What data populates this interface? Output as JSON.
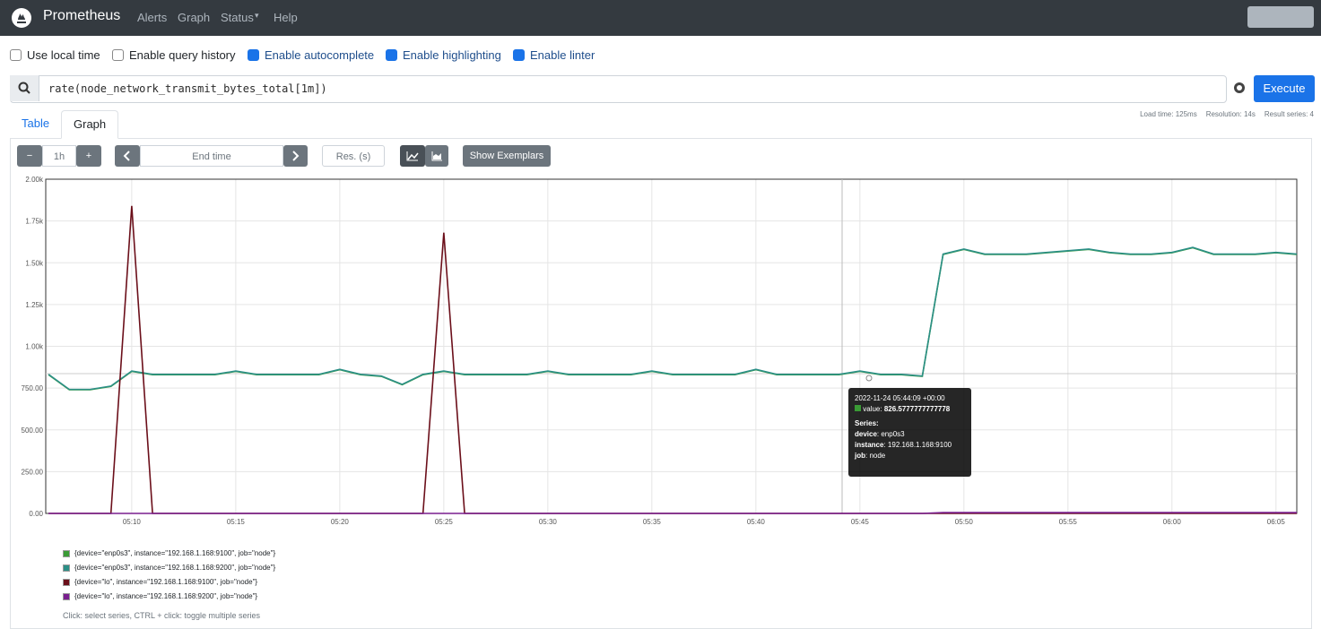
{
  "navbar": {
    "brand": "Prometheus",
    "links": [
      "Alerts",
      "Graph",
      "Status",
      "Help"
    ]
  },
  "options": [
    {
      "label": "Use local time",
      "checked": false
    },
    {
      "label": "Enable query history",
      "checked": false
    },
    {
      "label": "Enable autocomplete",
      "checked": true
    },
    {
      "label": "Enable highlighting",
      "checked": true
    },
    {
      "label": "Enable linter",
      "checked": true
    }
  ],
  "query": "rate(node_network_transmit_bytes_total[1m])",
  "execute": "Execute",
  "tabs": [
    "Table",
    "Graph"
  ],
  "stats": [
    "Load time: 125ms",
    "Resolution: 14s",
    "Result series: 4"
  ],
  "controls": {
    "minus": "−",
    "range": "1h",
    "plus": "+",
    "end_time": "End time",
    "resolution": "Res. (s)",
    "exemplars": "Show Exemplars"
  },
  "chart_data": {
    "type": "line",
    "grid": true,
    "x": [
      "05:06",
      "05:07",
      "05:08",
      "05:09",
      "05:10",
      "05:11",
      "05:12",
      "05:13",
      "05:14",
      "05:15",
      "05:16",
      "05:17",
      "05:18",
      "05:19",
      "05:20",
      "05:21",
      "05:22",
      "05:23",
      "05:24",
      "05:25",
      "05:26",
      "05:27",
      "05:28",
      "05:29",
      "05:30",
      "05:31",
      "05:32",
      "05:33",
      "05:34",
      "05:35",
      "05:36",
      "05:37",
      "05:38",
      "05:39",
      "05:40",
      "05:41",
      "05:42",
      "05:43",
      "05:44",
      "05:45",
      "05:46",
      "05:47",
      "05:48",
      "05:49",
      "05:50",
      "05:51",
      "05:52",
      "05:53",
      "05:54",
      "05:55",
      "05:56",
      "05:57",
      "05:58",
      "05:59",
      "06:00",
      "06:01",
      "06:02",
      "06:03",
      "06:04",
      "06:05",
      "06:06"
    ],
    "xlim": [
      "05:05:52",
      "06:06:00"
    ],
    "xticks": [
      "05:10",
      "05:15",
      "05:20",
      "05:25",
      "05:30",
      "05:35",
      "05:40",
      "05:45",
      "05:50",
      "05:55",
      "06:00",
      "06:05"
    ],
    "ylim": [
      0,
      2000
    ],
    "yticks": [
      {
        "value": 0,
        "label": "0.00"
      },
      {
        "value": 250,
        "label": "250.00"
      },
      {
        "value": 500,
        "label": "500.00"
      },
      {
        "value": 750,
        "label": "750.00"
      },
      {
        "value": 1000,
        "label": "1.00k"
      },
      {
        "value": 1250,
        "label": "1.25k"
      },
      {
        "value": 1500,
        "label": "1.50k"
      },
      {
        "value": 1750,
        "label": "1.75k"
      },
      {
        "value": 2000,
        "label": "2.00k"
      }
    ],
    "series": [
      {
        "name": "{device=\"enp0s3\", instance=\"192.168.1.168:9100\", job=\"node\"}",
        "color": "#3a9b35",
        "values": [
          830,
          740,
          740,
          760,
          850,
          830,
          830,
          830,
          830,
          850,
          830,
          830,
          830,
          830,
          860,
          830,
          820,
          770,
          830,
          850,
          830,
          830,
          830,
          830,
          850,
          830,
          830,
          830,
          830,
          850,
          830,
          830,
          830,
          830,
          860,
          830,
          830,
          830,
          830,
          850,
          830,
          830,
          820,
          1550,
          1580,
          1550,
          1550,
          1550,
          1560,
          1570,
          1580,
          1560,
          1550,
          1550,
          1560,
          1590,
          1550,
          1550,
          1550,
          1560,
          1550
        ]
      },
      {
        "name": "{device=\"enp0s3\", instance=\"192.168.1.168:9200\", job=\"node\"}",
        "color": "#2b8f86",
        "values": [
          832,
          742,
          742,
          762,
          852,
          832,
          832,
          832,
          832,
          852,
          832,
          832,
          832,
          832,
          862,
          832,
          822,
          772,
          832,
          852,
          832,
          832,
          832,
          832,
          852,
          832,
          832,
          832,
          832,
          852,
          832,
          832,
          832,
          832,
          862,
          832,
          832,
          832,
          832,
          852,
          832,
          832,
          822,
          1552,
          1582,
          1552,
          1552,
          1552,
          1562,
          1572,
          1582,
          1562,
          1552,
          1552,
          1562,
          1592,
          1552,
          1552,
          1552,
          1562,
          1552
        ]
      },
      {
        "name": "{device=\"lo\", instance=\"192.168.1.168:9100\", job=\"node\"}",
        "color": "#6b0f1a",
        "values": [
          0,
          0,
          0,
          0,
          1840,
          0,
          0,
          0,
          0,
          0,
          0,
          0,
          0,
          0,
          0,
          0,
          0,
          0,
          0,
          1680,
          0,
          0,
          0,
          0,
          0,
          0,
          0,
          0,
          0,
          0,
          0,
          0,
          0,
          0,
          0,
          0,
          0,
          0,
          0,
          0,
          0,
          0,
          0,
          0,
          0,
          0,
          0,
          0,
          0,
          0,
          0,
          0,
          0,
          0,
          0,
          0,
          0,
          0,
          0,
          0,
          0
        ]
      },
      {
        "name": "{device=\"lo\", instance=\"192.168.1.168:9200\", job=\"node\"}",
        "color": "#7a1f8f",
        "values": [
          0,
          0,
          0,
          0,
          0,
          0,
          0,
          0,
          0,
          0,
          0,
          0,
          0,
          0,
          0,
          0,
          0,
          0,
          0,
          0,
          0,
          0,
          0,
          0,
          0,
          0,
          0,
          0,
          0,
          0,
          0,
          0,
          0,
          0,
          0,
          0,
          0,
          0,
          0,
          0,
          0,
          0,
          0,
          5,
          5,
          5,
          5,
          5,
          5,
          5,
          5,
          5,
          5,
          5,
          5,
          5,
          5,
          5,
          5,
          5,
          5
        ]
      }
    ]
  },
  "tooltip": {
    "time": "2022-11-24 05:44:09 +00:00",
    "value_key": "value:",
    "value": "826.5777777777778",
    "series_title": "Series:",
    "labels": [
      {
        "key": "device",
        "value": ": enp0s3"
      },
      {
        "key": "instance",
        "value": ": 192.168.1.168:9100"
      },
      {
        "key": "job",
        "value": ": node"
      }
    ]
  },
  "hint": "Click: select series, CTRL + click: toggle multiple series"
}
